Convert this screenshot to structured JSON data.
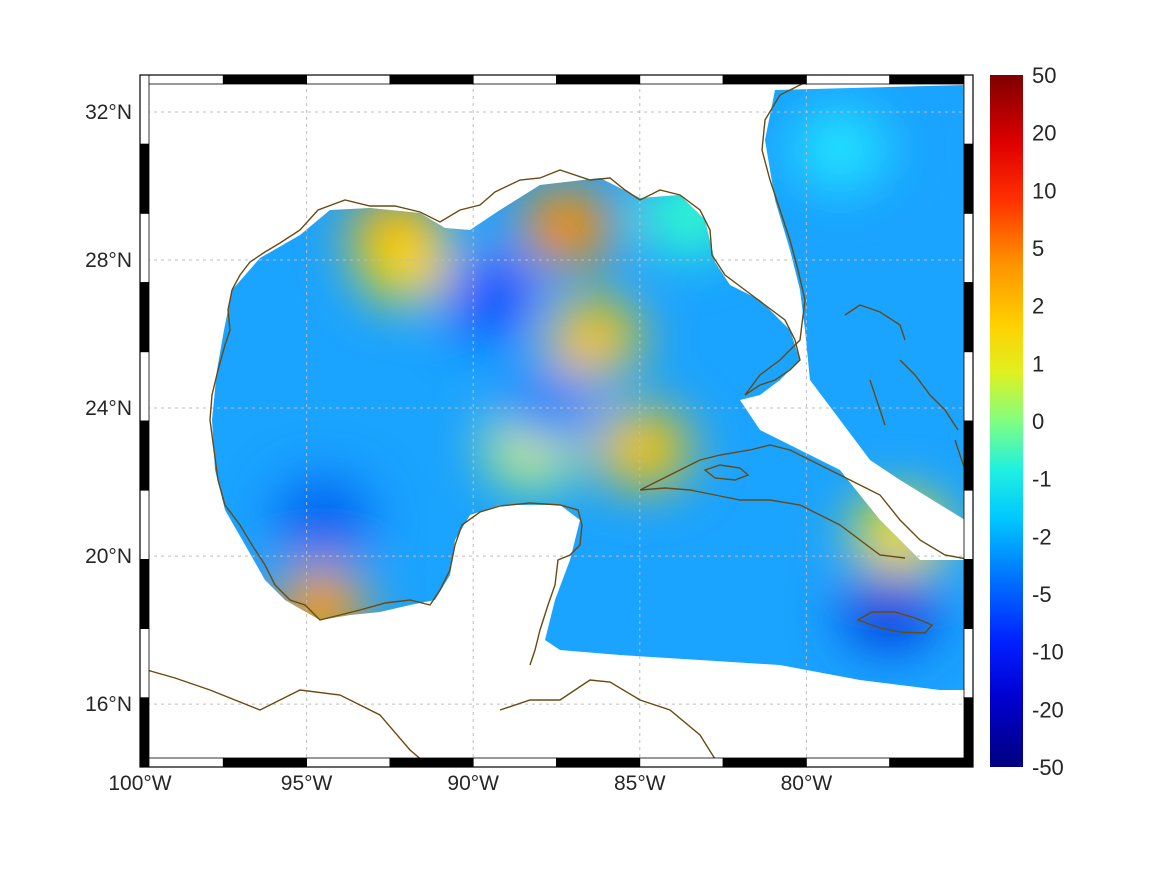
{
  "map": {
    "lon_min": -100,
    "lon_max": -75,
    "lat_min": 14.3,
    "lat_max": 33,
    "lon_ticks": [
      {
        "value": -100,
        "label": "100°W"
      },
      {
        "value": -95,
        "label": "95°W"
      },
      {
        "value": -90,
        "label": "90°W"
      },
      {
        "value": -85,
        "label": "85°W"
      },
      {
        "value": -80,
        "label": "80°W"
      }
    ],
    "lat_ticks": [
      {
        "value": 32,
        "label": "32°N"
      },
      {
        "value": 28,
        "label": "28°N"
      },
      {
        "value": 24,
        "label": "24°N"
      },
      {
        "value": 20,
        "label": "20°N"
      },
      {
        "value": 16,
        "label": "16°N"
      }
    ],
    "grid": true,
    "coastline_color": "#6b4a12",
    "land_color": "#ffffff"
  },
  "colorbar": {
    "labels": [
      "50",
      "20",
      "10",
      "5",
      "2",
      "1",
      "0",
      "-1",
      "-2",
      "-5",
      "-10",
      "-20",
      "-50"
    ],
    "colormap": [
      "#7f0000",
      "#d40000",
      "#ff2a00",
      "#ff7f00",
      "#ffd500",
      "#d4ff2b",
      "#7fff7f",
      "#2bffd4",
      "#00d5ff",
      "#0080ff",
      "#002aff",
      "#0000d4",
      "#00007f"
    ]
  },
  "field": {
    "background": "#1aa3ff",
    "patches": [
      {
        "lon": -92.3,
        "lat": 28.7,
        "value": 5,
        "color": "#ffa500"
      },
      {
        "lon": -92.0,
        "lat": 27.9,
        "value": 2,
        "color": "#ffd700"
      },
      {
        "lon": -87.2,
        "lat": 28.9,
        "value": 5,
        "color": "#ff8c00"
      },
      {
        "lon": -86.4,
        "lat": 25.9,
        "value": 2,
        "color": "#ffc400"
      },
      {
        "lon": -84.9,
        "lat": 22.9,
        "value": 2,
        "color": "#ffc400"
      },
      {
        "lon": -94.6,
        "lat": 18.6,
        "value": 5,
        "color": "#ff9a00"
      },
      {
        "lon": -77.2,
        "lat": 20.6,
        "value": 1,
        "color": "#ffe000"
      },
      {
        "lon": -88.2,
        "lat": 23.0,
        "value": 1,
        "color": "#e6ff33"
      },
      {
        "lon": -83.5,
        "lat": 29.2,
        "value": -1,
        "color": "#33ffcc"
      },
      {
        "lon": -89.5,
        "lat": 27.0,
        "value": -10,
        "color": "#0050ff"
      },
      {
        "lon": -94.5,
        "lat": 21.0,
        "value": -10,
        "color": "#0060f0"
      },
      {
        "lon": -77.5,
        "lat": 18.5,
        "value": -10,
        "color": "#0040e0"
      },
      {
        "lon": -79.0,
        "lat": 31.0,
        "value": -1,
        "color": "#22e5ff"
      },
      {
        "lon": -87.7,
        "lat": 24.0,
        "value": -5,
        "color": "#0080ff"
      }
    ]
  }
}
